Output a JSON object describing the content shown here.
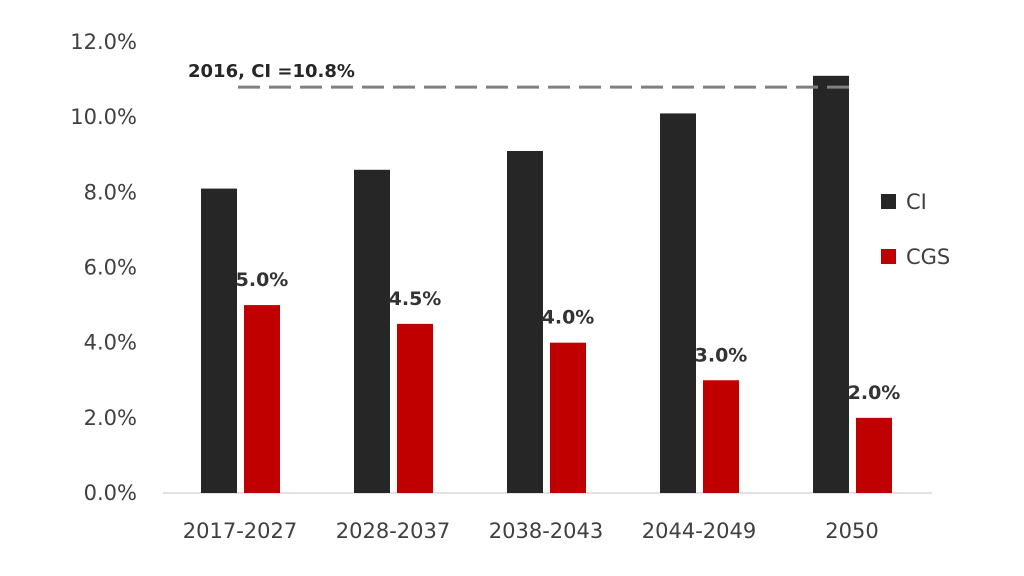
{
  "chart_data": {
    "type": "bar",
    "categories": [
      "2017-2027",
      "2028-2037",
      "2038-2043",
      "2044-2049",
      "2050"
    ],
    "series": [
      {
        "name": "CI",
        "color": "#262626",
        "values": [
          8.1,
          8.6,
          9.1,
          10.1,
          11.1
        ]
      },
      {
        "name": "CGS",
        "color": "#c00000",
        "values": [
          5.0,
          4.5,
          4.0,
          3.0,
          2.0
        ]
      }
    ],
    "data_labels": {
      "CGS": [
        "5.0%",
        "4.5%",
        "4.0%",
        "3.0%",
        "2.0%"
      ]
    },
    "y_ticks": [
      "0.0%",
      "2.0%",
      "4.0%",
      "6.0%",
      "8.0%",
      "10.0%",
      "12.0%"
    ],
    "ylim": [
      0,
      12
    ],
    "grid": false,
    "legend_position": "right",
    "reference_line": {
      "value": 10.8,
      "label": "2016, CI =10.8%",
      "style": "dashed",
      "color": "#808080"
    }
  }
}
